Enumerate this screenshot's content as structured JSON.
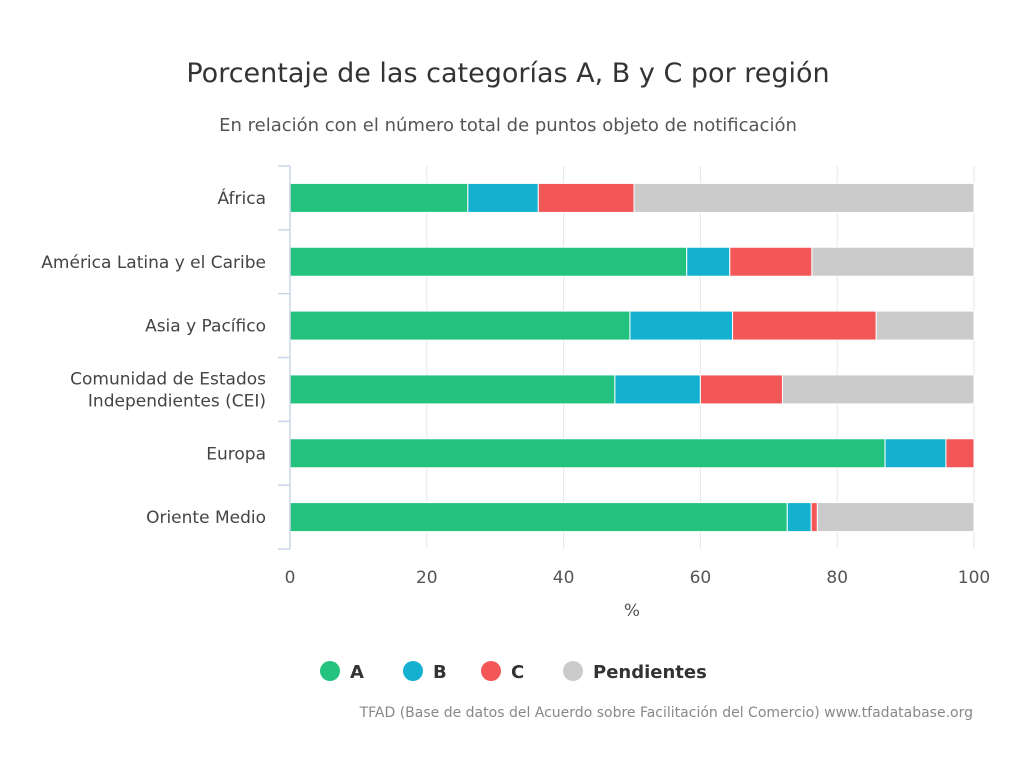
{
  "chart_data": {
    "type": "bar",
    "orientation": "horizontal",
    "stacked": true,
    "title": "Porcentaje de las categorías A, B y C por región",
    "subtitle": "En relación con el número total de puntos objeto de notificación",
    "xlabel": "%",
    "ylabel": "",
    "xlim": [
      0,
      100
    ],
    "xticks": [
      "0",
      "20",
      "40",
      "60",
      "80",
      "100"
    ],
    "categories": [
      [
        "África"
      ],
      [
        "América Latina y el Caribe"
      ],
      [
        "Asia y Pacífico"
      ],
      [
        "Comunidad de Estados",
        "Independientes (CEI)"
      ],
      [
        "Europa"
      ],
      [
        "Oriente Medio"
      ]
    ],
    "series": [
      {
        "name": "A",
        "color": "#23c37f",
        "values": [
          26,
          58,
          49.7,
          47.5,
          87,
          72.7
        ]
      },
      {
        "name": "B",
        "color": "#14b0cf",
        "values": [
          10.3,
          6.3,
          15,
          12.5,
          8.9,
          3.5
        ]
      },
      {
        "name": "C",
        "color": "#f25656",
        "values": [
          14,
          12,
          21,
          12,
          4.1,
          0.9
        ]
      },
      {
        "name": "Pendientes",
        "color": "#cbcbcb",
        "values": [
          49.7,
          23.7,
          14.3,
          28,
          0,
          22.9
        ]
      }
    ],
    "legend_position": "bottom",
    "grid": true
  },
  "credits": "TFAD (Base de datos del Acuerdo sobre Facilitación del Comercio) www.tfadatabase.org"
}
